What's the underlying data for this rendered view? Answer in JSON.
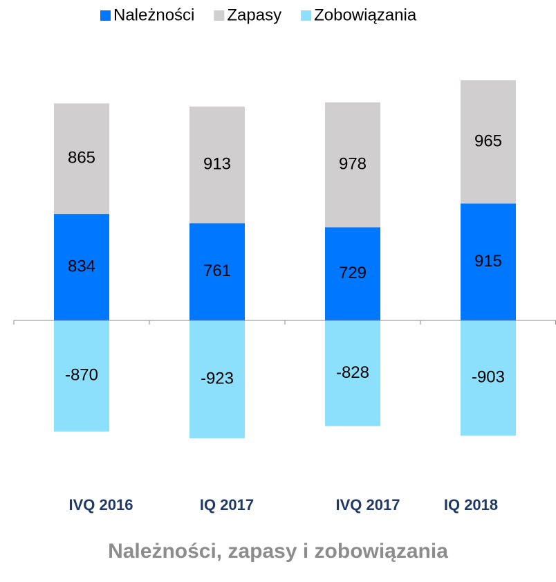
{
  "chart_data": {
    "type": "bar",
    "stacked": true,
    "title": "Należności, zapasy i zobowiązania",
    "categories": [
      "IVQ 2016",
      "IQ 2017",
      "IVQ 2017",
      "IQ 2018"
    ],
    "series": [
      {
        "name": "Należności",
        "color": "#0077ff",
        "values": [
          834,
          761,
          729,
          915
        ]
      },
      {
        "name": "Zapasy",
        "color": "#d0cecf",
        "values": [
          865,
          913,
          978,
          965
        ]
      },
      {
        "name": "Zobowiązania",
        "color": "#8ce0fc",
        "values": [
          -870,
          -923,
          -828,
          -903
        ]
      }
    ],
    "legend": "top"
  }
}
